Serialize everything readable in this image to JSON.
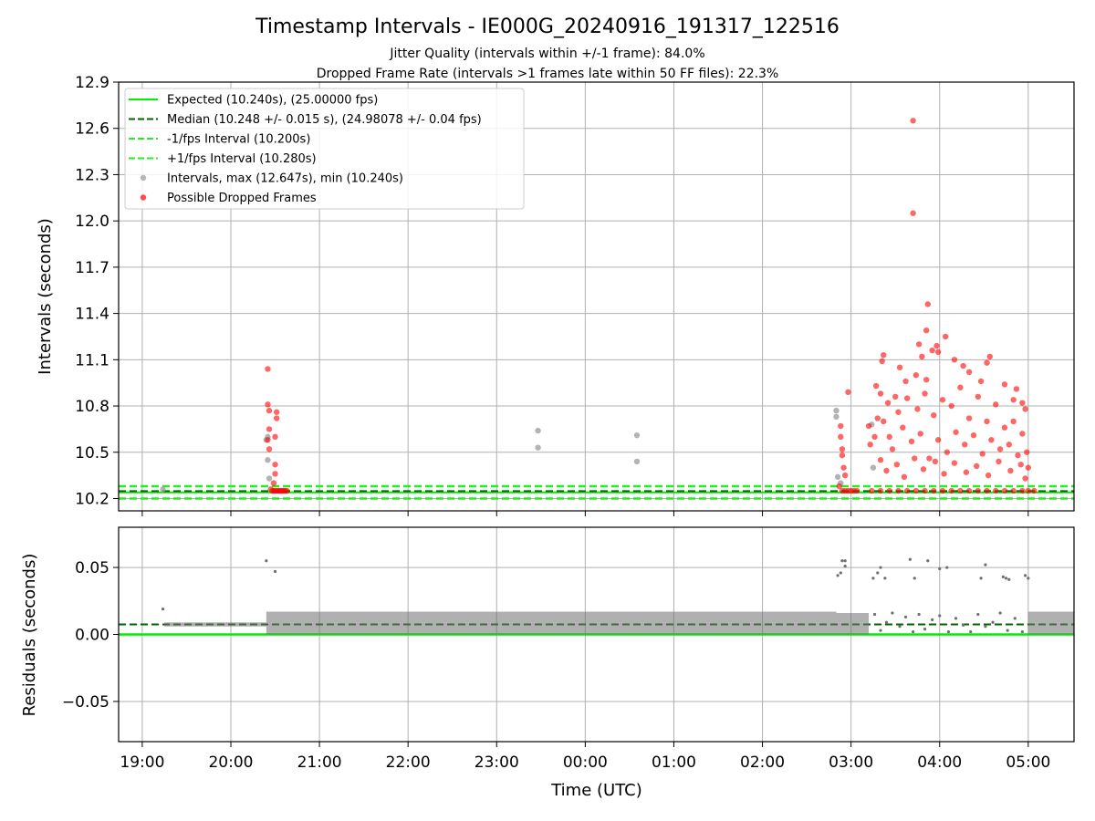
{
  "figure": {
    "title": "Timestamp Intervals - IE000G_20240916_191317_122516",
    "subtitle_1": "Jitter Quality (intervals within +/-1 frame): 84.0%",
    "subtitle_2": "Dropped Frame Rate (intervals >1 frames late within 50 FF files): 22.3%"
  },
  "colors": {
    "expected": "#00ee00",
    "median": "#006400",
    "bounds": "#22ee22",
    "intervals": "#999999",
    "dropped": "#ff0000",
    "residuals": "#707070",
    "grid": "#b0b0b0"
  },
  "chart_data": [
    {
      "type": "scatter",
      "ylabel": "Intervals (seconds)",
      "xlabel": "",
      "x_ticks": [
        "19:00",
        "20:00",
        "21:00",
        "22:00",
        "23:00",
        "00:00",
        "01:00",
        "02:00",
        "03:00",
        "04:00",
        "05:00"
      ],
      "x_range": [
        "18:44",
        "05:31"
      ],
      "y_ticks": [
        "10.2",
        "10.5",
        "10.8",
        "11.1",
        "11.4",
        "11.7",
        "12.0",
        "12.3",
        "12.6",
        "12.9"
      ],
      "ylim": [
        10.12,
        12.9
      ],
      "grid": true,
      "legend_position": "upper-left",
      "legend": [
        {
          "label": "Expected (10.240s), (25.00000 fps)",
          "style": "solid",
          "color": "#00ee00"
        },
        {
          "label": "Median (10.248 +/- 0.015 s), (24.98078 +/- 0.04 fps)",
          "style": "dashed",
          "color": "#006400"
        },
        {
          "label": "-1/fps Interval (10.200s)",
          "style": "dashed",
          "color": "#22ee22"
        },
        {
          "label": "+1/fps Interval (10.280s)",
          "style": "dashed",
          "color": "#22ee22"
        },
        {
          "label": "Intervals, max (12.647s), min (10.240s)",
          "style": "marker",
          "color": "#999999"
        },
        {
          "label": "Possible Dropped Frames",
          "style": "marker",
          "color": "#ff0000"
        }
      ],
      "lines": {
        "expected": 10.24,
        "median": 10.248,
        "minus_fps": 10.2,
        "plus_fps": 10.28
      },
      "series": [
        {
          "name": "Intervals, max (12.647s), min (10.240s)",
          "points": [
            [
              "19:14",
              10.26
            ],
            [
              "20:24",
              10.58
            ],
            [
              "20:25",
              10.45
            ],
            [
              "20:25",
              10.6
            ],
            [
              "20:26",
              10.33
            ],
            [
              "23:28",
              10.64
            ],
            [
              "23:28",
              10.53
            ],
            [
              "00:35",
              10.61
            ],
            [
              "00:35",
              10.44
            ],
            [
              "02:50",
              10.77
            ],
            [
              "02:50",
              10.73
            ],
            [
              "02:51",
              10.34
            ],
            [
              "02:53",
              10.3
            ],
            [
              "03:14",
              10.68
            ],
            [
              "03:15",
              10.4
            ]
          ]
        },
        {
          "name": "Possible Dropped Frames",
          "points": [
            [
              "20:25",
              11.04
            ],
            [
              "20:25",
              10.81
            ],
            [
              "20:26",
              10.77
            ],
            [
              "20:26",
              10.65
            ],
            [
              "20:25",
              10.58
            ],
            [
              "20:26",
              10.52
            ],
            [
              "20:30",
              10.6
            ],
            [
              "20:31",
              10.76
            ],
            [
              "20:31",
              10.72
            ],
            [
              "20:30",
              10.42
            ],
            [
              "20:30",
              10.36
            ],
            [
              "20:29",
              10.3
            ],
            [
              "20:27",
              10.26
            ],
            [
              "20:28",
              10.25
            ],
            [
              "20:29",
              10.25
            ],
            [
              "20:30",
              10.25
            ],
            [
              "20:31",
              10.25
            ],
            [
              "20:32",
              10.25
            ],
            [
              "20:33",
              10.25
            ],
            [
              "20:34",
              10.25
            ],
            [
              "20:35",
              10.25
            ],
            [
              "20:36",
              10.25
            ],
            [
              "20:37",
              10.25
            ],
            [
              "20:38",
              10.25
            ],
            [
              "02:53",
              10.67
            ],
            [
              "02:53",
              10.6
            ],
            [
              "02:54",
              10.52
            ],
            [
              "02:54",
              10.48
            ],
            [
              "02:55",
              10.4
            ],
            [
              "02:56",
              10.35
            ],
            [
              "02:58",
              10.89
            ],
            [
              "02:52",
              10.28
            ],
            [
              "02:54",
              10.25
            ],
            [
              "02:56",
              10.25
            ],
            [
              "02:58",
              10.25
            ],
            [
              "03:00",
              10.25
            ],
            [
              "03:02",
              10.25
            ],
            [
              "03:04",
              10.25
            ],
            [
              "03:42",
              12.65
            ],
            [
              "03:42",
              12.05
            ],
            [
              "03:52",
              11.46
            ],
            [
              "03:51",
              11.29
            ],
            [
              "04:04",
              11.25
            ],
            [
              "03:46",
              11.2
            ],
            [
              "03:55",
              11.16
            ],
            [
              "03:59",
              11.15
            ],
            [
              "03:58",
              11.19
            ],
            [
              "03:48",
              11.12
            ],
            [
              "03:22",
              11.13
            ],
            [
              "03:21",
              11.09
            ],
            [
              "04:10",
              11.1
            ],
            [
              "04:16",
              11.06
            ],
            [
              "04:34",
              11.12
            ],
            [
              "04:32",
              11.08
            ],
            [
              "03:33",
              11.05
            ],
            [
              "03:37",
              10.96
            ],
            [
              "03:44",
              11.0
            ],
            [
              "03:51",
              10.97
            ],
            [
              "04:20",
              11.02
            ],
            [
              "04:28",
              10.96
            ],
            [
              "04:44",
              10.94
            ],
            [
              "04:52",
              10.91
            ],
            [
              "04:50",
              10.84
            ],
            [
              "04:56",
              10.82
            ],
            [
              "04:58",
              10.78
            ],
            [
              "03:17",
              10.93
            ],
            [
              "03:20",
              10.88
            ],
            [
              "03:25",
              10.82
            ],
            [
              "03:30",
              10.86
            ],
            [
              "03:12",
              10.67
            ],
            [
              "03:13",
              10.55
            ],
            [
              "03:16",
              10.6
            ],
            [
              "03:18",
              10.72
            ],
            [
              "03:22",
              10.7
            ],
            [
              "03:26",
              10.6
            ],
            [
              "03:28",
              10.52
            ],
            [
              "03:32",
              10.76
            ],
            [
              "03:35",
              10.66
            ],
            [
              "03:38",
              10.85
            ],
            [
              "03:41",
              10.57
            ],
            [
              "03:45",
              10.78
            ],
            [
              "03:47",
              10.62
            ],
            [
              "03:50",
              10.88
            ],
            [
              "03:53",
              10.46
            ],
            [
              "03:56",
              10.74
            ],
            [
              "03:59",
              10.58
            ],
            [
              "04:02",
              10.84
            ],
            [
              "04:05",
              10.5
            ],
            [
              "04:08",
              10.8
            ],
            [
              "04:11",
              10.63
            ],
            [
              "04:14",
              10.92
            ],
            [
              "04:17",
              10.55
            ],
            [
              "04:20",
              10.72
            ],
            [
              "04:23",
              10.61
            ],
            [
              "04:26",
              10.86
            ],
            [
              "04:29",
              10.49
            ],
            [
              "04:32",
              10.7
            ],
            [
              "04:35",
              10.58
            ],
            [
              "04:38",
              10.81
            ],
            [
              "04:41",
              10.52
            ],
            [
              "04:44",
              10.66
            ],
            [
              "04:47",
              10.55
            ],
            [
              "04:50",
              10.7
            ],
            [
              "04:53",
              10.48
            ],
            [
              "04:56",
              10.62
            ],
            [
              "04:59",
              10.5
            ],
            [
              "05:00",
              10.4
            ],
            [
              "04:58",
              10.33
            ],
            [
              "03:20",
              10.45
            ],
            [
              "03:24",
              10.38
            ],
            [
              "03:31",
              10.42
            ],
            [
              "03:36",
              10.34
            ],
            [
              "03:43",
              10.46
            ],
            [
              "03:49",
              10.39
            ],
            [
              "03:57",
              10.44
            ],
            [
              "04:03",
              10.36
            ],
            [
              "04:10",
              10.43
            ],
            [
              "04:18",
              10.37
            ],
            [
              "04:25",
              10.41
            ],
            [
              "04:33",
              10.35
            ],
            [
              "04:40",
              10.44
            ],
            [
              "04:48",
              10.38
            ],
            [
              "04:55",
              10.42
            ],
            [
              "03:14",
              10.25
            ],
            [
              "03:20",
              10.25
            ],
            [
              "03:26",
              10.25
            ],
            [
              "03:32",
              10.25
            ],
            [
              "03:38",
              10.25
            ],
            [
              "03:44",
              10.25
            ],
            [
              "03:50",
              10.25
            ],
            [
              "03:56",
              10.25
            ],
            [
              "04:02",
              10.25
            ],
            [
              "04:08",
              10.25
            ],
            [
              "04:14",
              10.25
            ],
            [
              "04:20",
              10.25
            ],
            [
              "04:26",
              10.25
            ],
            [
              "04:32",
              10.25
            ],
            [
              "04:38",
              10.25
            ],
            [
              "04:44",
              10.25
            ],
            [
              "04:50",
              10.25
            ],
            [
              "04:56",
              10.25
            ],
            [
              "05:00",
              10.25
            ],
            [
              "05:04",
              10.25
            ]
          ]
        }
      ]
    },
    {
      "type": "scatter",
      "ylabel": "Residuals (seconds)",
      "xlabel": "Time (UTC)",
      "x_ticks": [
        "19:00",
        "20:00",
        "21:00",
        "22:00",
        "23:00",
        "00:00",
        "01:00",
        "02:00",
        "03:00",
        "04:00",
        "05:00"
      ],
      "x_range": [
        "18:44",
        "05:31"
      ],
      "y_ticks": [
        "−0.05",
        "0.00",
        "0.05"
      ],
      "ylim": [
        -0.08,
        0.08
      ],
      "grid": true,
      "lines": {
        "zero": 0.0,
        "median_offset": 0.0075
      },
      "series": [
        {
          "name": "Residuals",
          "bands": [
            {
              "from": "19:15",
              "to": "20:24",
              "min": 0.006,
              "max": 0.009
            },
            {
              "from": "20:24",
              "to": "02:50",
              "min": 0.0,
              "max": 0.017
            },
            {
              "from": "02:50",
              "to": "03:12",
              "min": 0.0,
              "max": 0.016
            },
            {
              "from": "05:00",
              "to": "05:31",
              "min": 0.0,
              "max": 0.017
            }
          ],
          "points": [
            [
              "19:14",
              0.019
            ],
            [
              "20:24",
              0.055
            ],
            [
              "20:30",
              0.047
            ],
            [
              "02:51",
              0.044
            ],
            [
              "02:53",
              0.046
            ],
            [
              "02:54",
              0.055
            ],
            [
              "02:56",
              0.055
            ],
            [
              "02:56",
              0.051
            ],
            [
              "03:15",
              0.042
            ],
            [
              "03:18",
              0.046
            ],
            [
              "03:20",
              0.05
            ],
            [
              "03:23",
              0.042
            ],
            [
              "03:40",
              0.056
            ],
            [
              "03:43",
              0.042
            ],
            [
              "03:52",
              0.055
            ],
            [
              "04:00",
              0.049
            ],
            [
              "04:05",
              0.05
            ],
            [
              "04:28",
              0.042
            ],
            [
              "04:31",
              0.052
            ],
            [
              "04:43",
              0.043
            ],
            [
              "04:45",
              0.042
            ],
            [
              "04:47",
              0.041
            ],
            [
              "04:58",
              0.044
            ],
            [
              "05:00",
              0.042
            ],
            [
              "03:16",
              0.015
            ],
            [
              "03:20",
              0.003
            ],
            [
              "03:24",
              0.009
            ],
            [
              "03:28",
              0.016
            ],
            [
              "03:33",
              0.006
            ],
            [
              "03:37",
              0.013
            ],
            [
              "03:42",
              0.002
            ],
            [
              "03:46",
              0.015
            ],
            [
              "03:50",
              0.004
            ],
            [
              "03:55",
              0.011
            ],
            [
              "04:00",
              0.014
            ],
            [
              "04:06",
              0.002
            ],
            [
              "04:11",
              0.012
            ],
            [
              "04:16",
              0.007
            ],
            [
              "04:21",
              0.002
            ],
            [
              "04:26",
              0.015
            ],
            [
              "04:31",
              0.006
            ],
            [
              "04:36",
              0.009
            ],
            [
              "04:41",
              0.016
            ],
            [
              "04:46",
              0.003
            ],
            [
              "04:51",
              0.012
            ],
            [
              "04:56",
              0.002
            ]
          ]
        }
      ]
    }
  ]
}
